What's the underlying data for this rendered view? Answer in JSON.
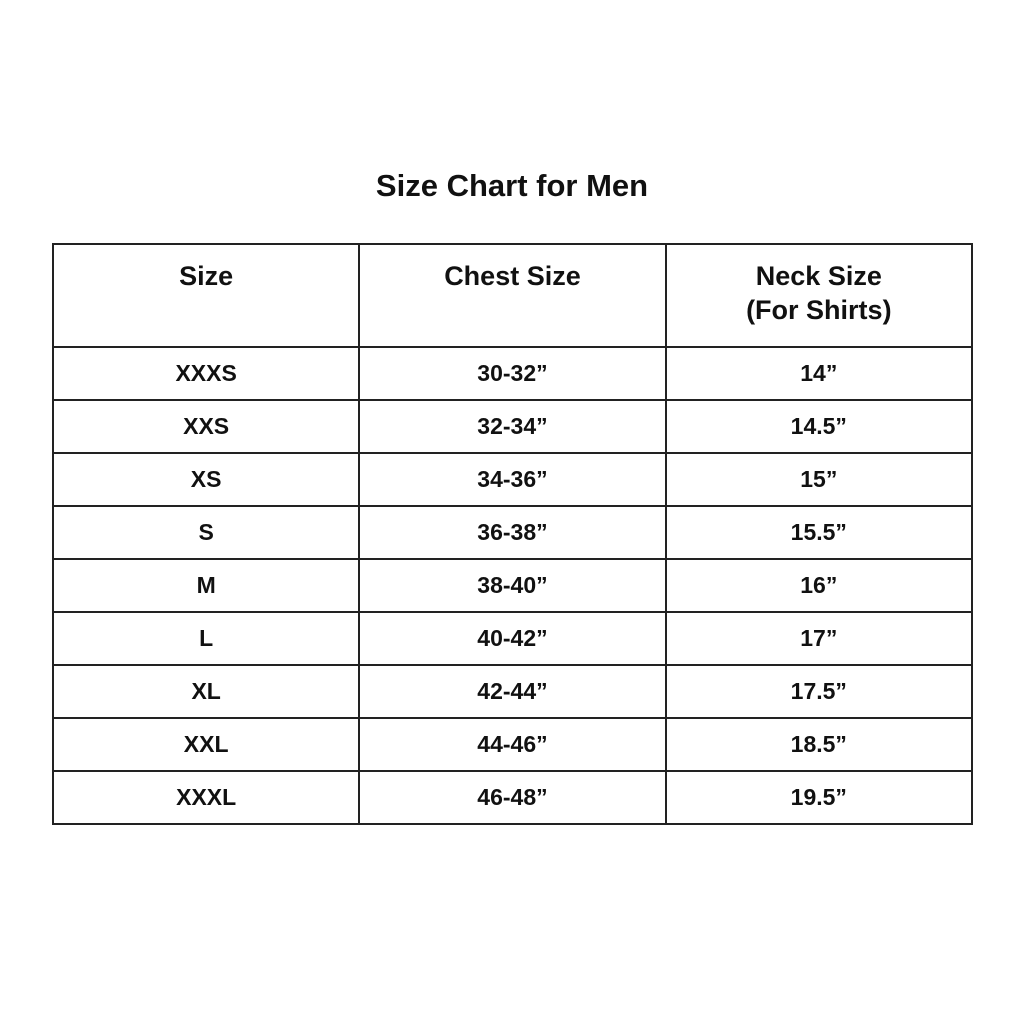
{
  "title": "Size Chart for Men",
  "headers": [
    "Size",
    "Chest Size",
    "Neck Size",
    "(For Shirts)"
  ],
  "rows": [
    {
      "size": "XXXS",
      "chest": "30-32”",
      "neck": "14”"
    },
    {
      "size": "XXS",
      "chest": "32-34”",
      "neck": "14.5”"
    },
    {
      "size": "XS",
      "chest": "34-36”",
      "neck": "15”"
    },
    {
      "size": "S",
      "chest": "36-38”",
      "neck": "15.5”"
    },
    {
      "size": "M",
      "chest": "38-40”",
      "neck": "16”"
    },
    {
      "size": "L",
      "chest": "40-42”",
      "neck": "17”"
    },
    {
      "size": "XL",
      "chest": "42-44”",
      "neck": "17.5”"
    },
    {
      "size": "XXL",
      "chest": "44-46”",
      "neck": "18.5”"
    },
    {
      "size": "XXXL",
      "chest": "46-48”",
      "neck": "19.5”"
    }
  ]
}
